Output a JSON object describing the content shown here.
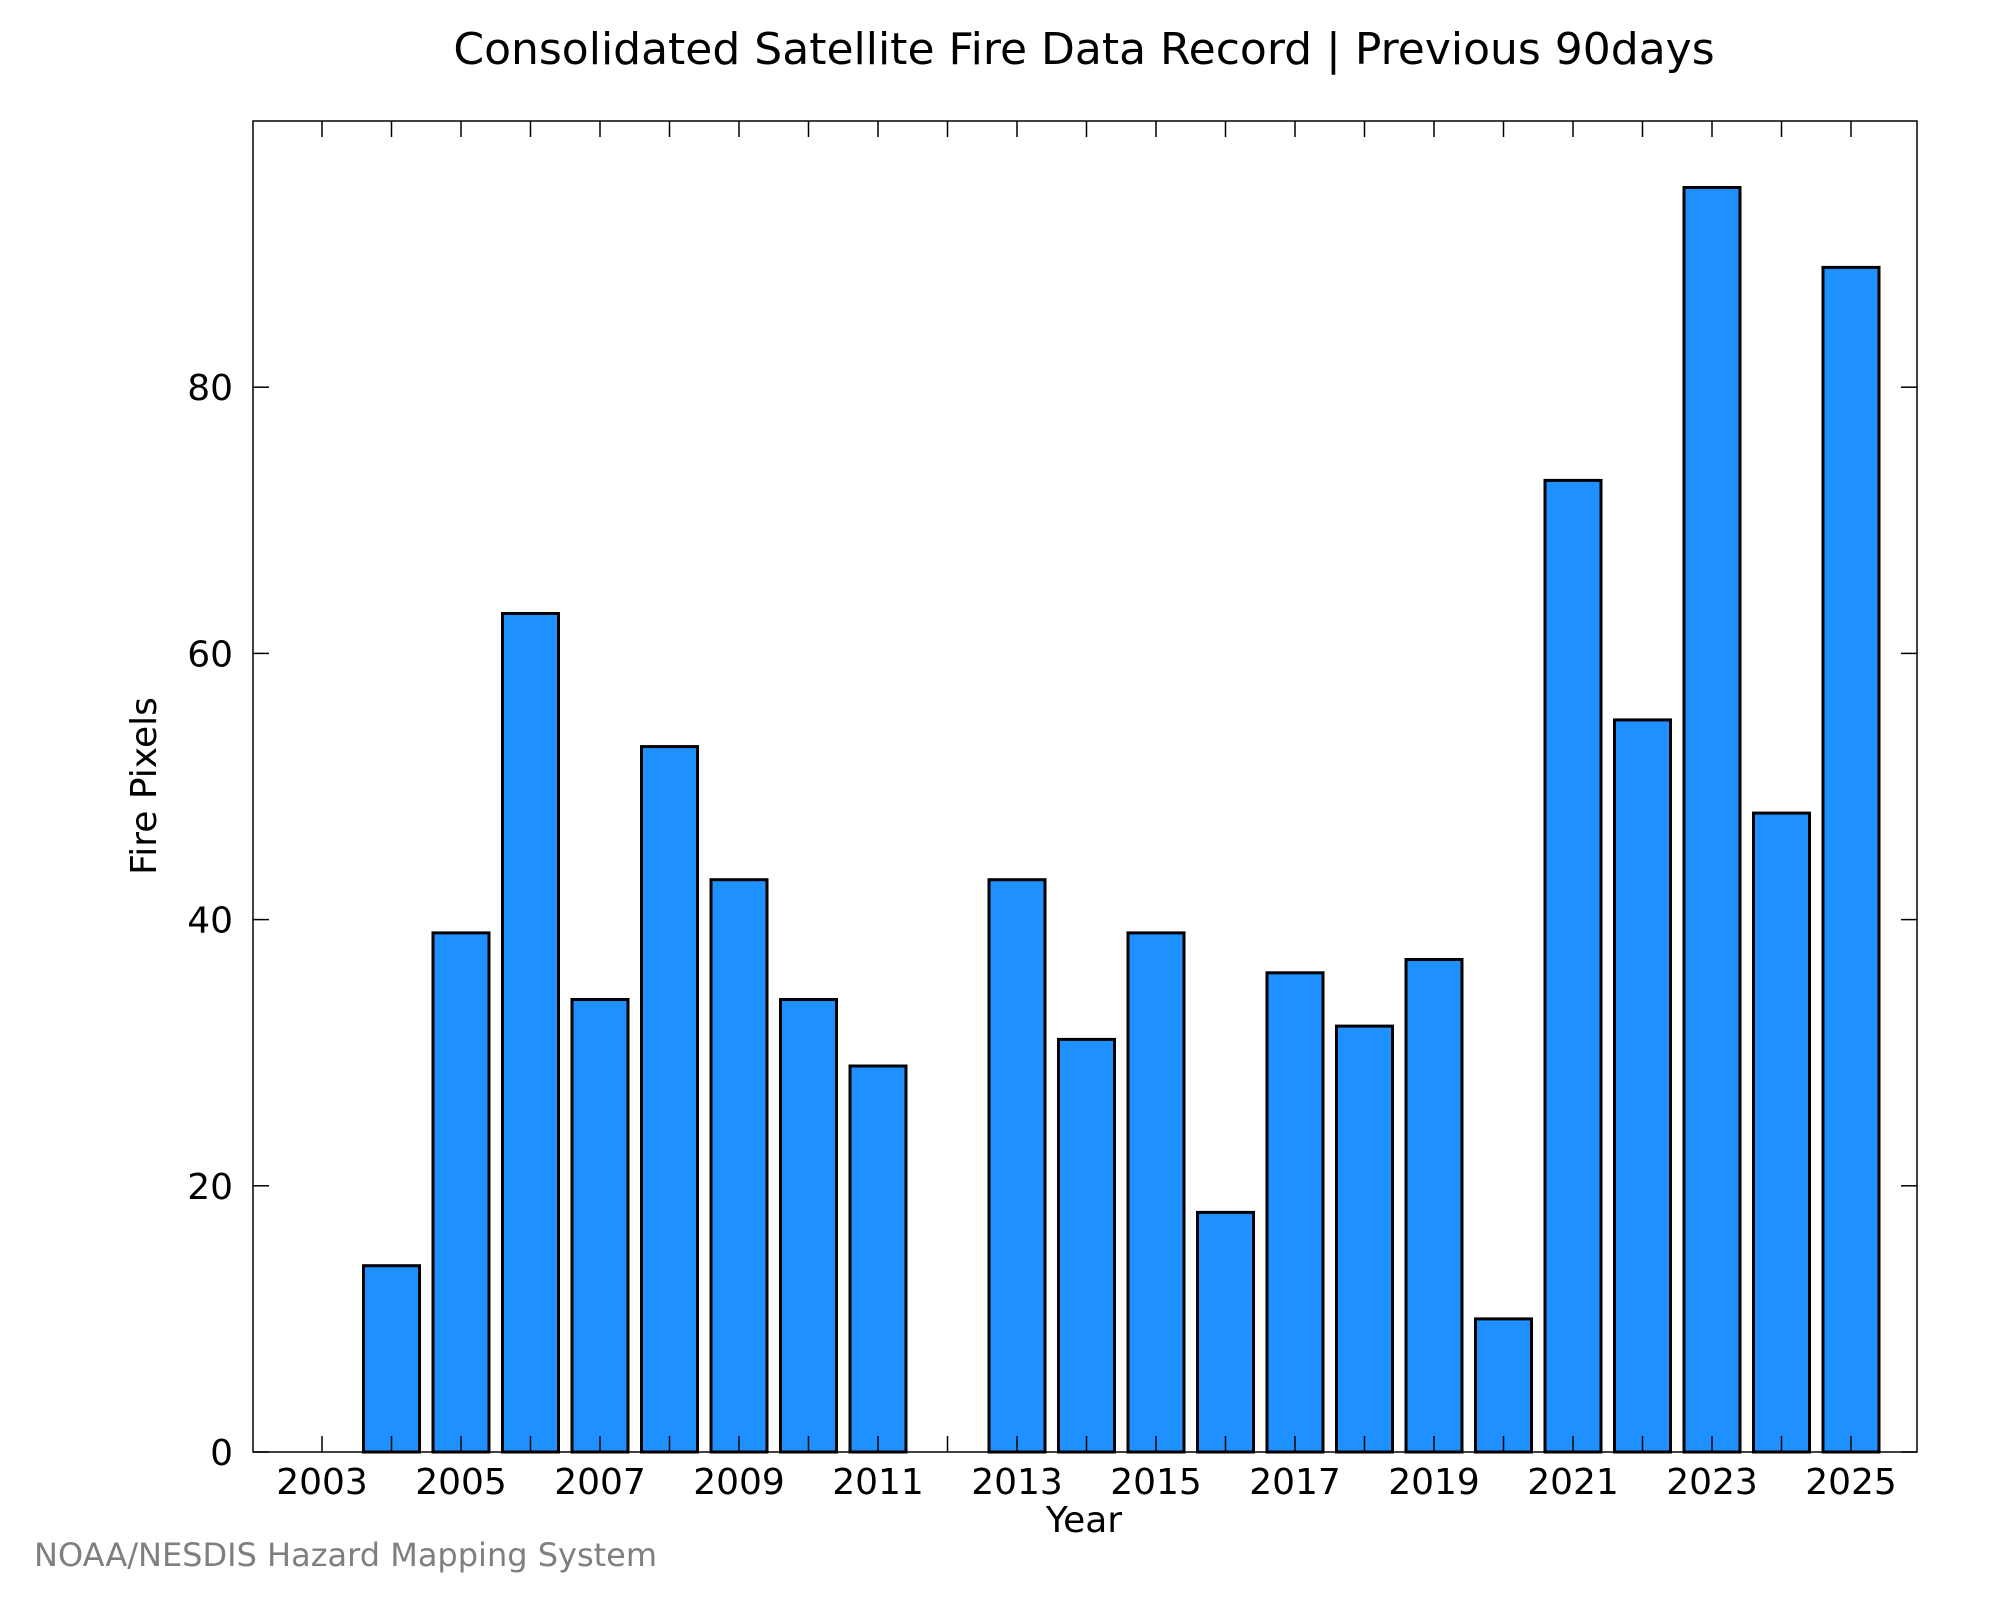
{
  "credit": "NOAA/NESDIS Hazard Mapping System",
  "chart_data": {
    "type": "bar",
    "title": "Consolidated Satellite Fire Data Record | Previous 90days",
    "xlabel": "Year",
    "ylabel": "Fire Pixels",
    "categories": [
      "2003",
      "2004",
      "2005",
      "2006",
      "2007",
      "2008",
      "2009",
      "2010",
      "2011",
      "2012",
      "2013",
      "2014",
      "2015",
      "2016",
      "2017",
      "2018",
      "2019",
      "2020",
      "2021",
      "2022",
      "2023",
      "2024",
      "2025"
    ],
    "values": [
      0,
      14,
      39,
      63,
      34,
      53,
      43,
      34,
      29,
      0,
      43,
      31,
      39,
      18,
      36,
      32,
      37,
      10,
      73,
      55,
      95,
      48,
      89
    ],
    "x_tick_labels": [
      "2003",
      "2005",
      "2007",
      "2009",
      "2011",
      "2013",
      "2015",
      "2017",
      "2019",
      "2021",
      "2023",
      "2025"
    ],
    "y_ticks": [
      0,
      20,
      40,
      60,
      80
    ],
    "ylim": [
      0,
      100
    ],
    "grid": false,
    "legend": "none",
    "bar_color": "#1e90ff",
    "edge_color": "#000000"
  }
}
